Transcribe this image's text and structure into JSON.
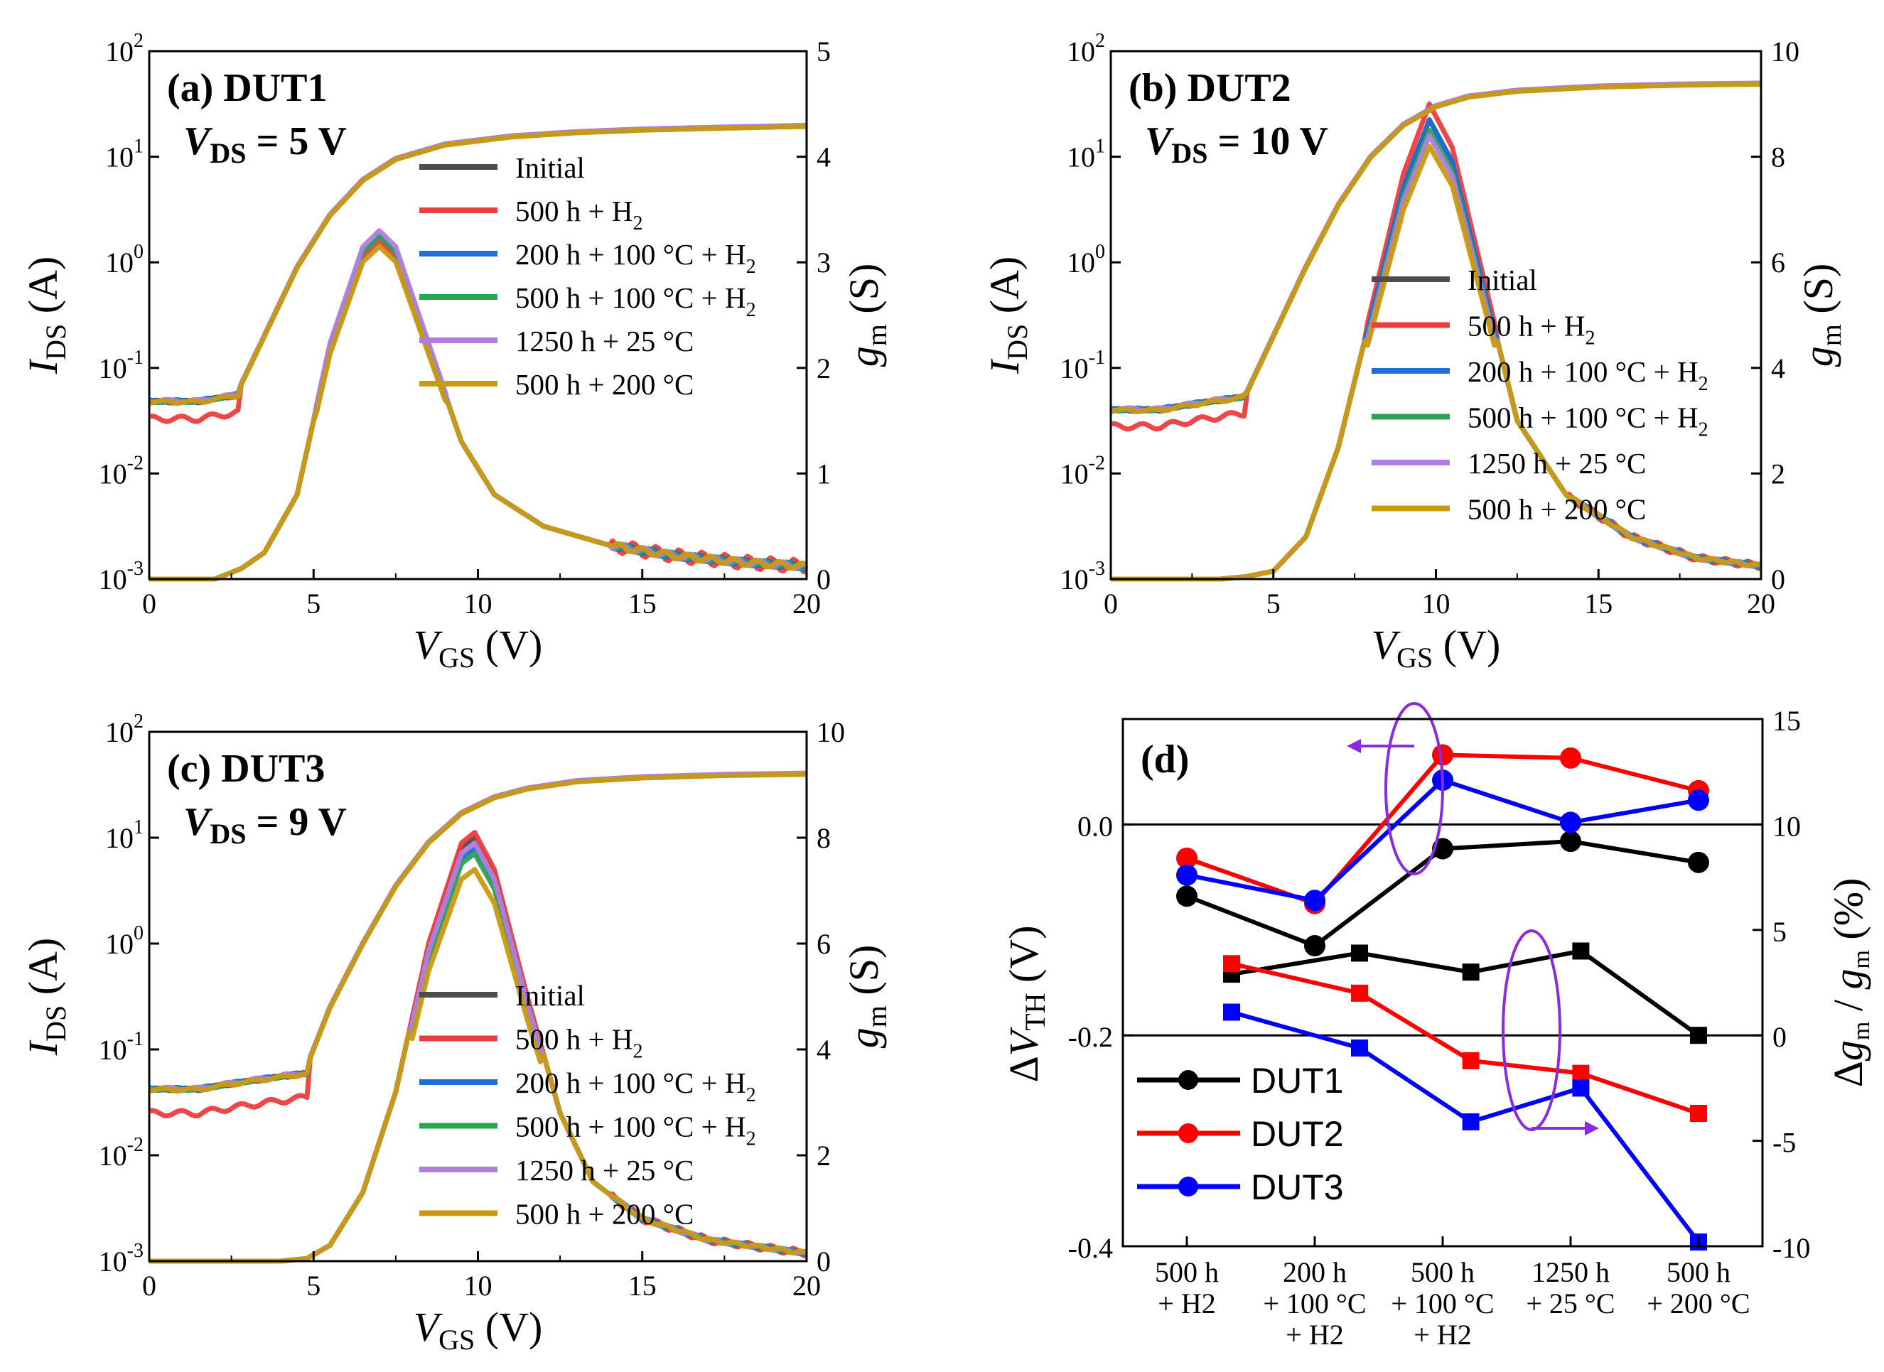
{
  "legend_labels": [
    "Initial",
    "500 h + H",
    "200 h + 100 °C + H",
    "500 h + 100 °C + H",
    "1250 h + 25 °C",
    "500 h + 200 °C"
  ],
  "legend_sub": "2",
  "series_colors": [
    "#4d4d4d",
    "#ee3d3d",
    "#1f6fd6",
    "#2ca352",
    "#b07ee0",
    "#c89a10"
  ],
  "axis_text": {
    "ids_main": "I",
    "ids_sub": "DS",
    "ids_unit": " (A)",
    "gm_main": "g",
    "gm_sub": "m",
    "gm_unit": " (S)",
    "vgs_main": "V",
    "vgs_sub": "GS",
    "vgs_unit": " (V)",
    "dvth_pre": "Δ",
    "dvth_main": "V",
    "dvth_sub": "TH",
    "dvth_unit": " (V)",
    "dgm_pre": "Δ",
    "dgm_main": "g",
    "dgm_sub": "m",
    "dgm_mid": " / ",
    "dgm_main2": "g",
    "dgm_sub2": "m",
    "dgm_unit": " (%)"
  },
  "ids_ticks": {
    "base": "10",
    "exps": [
      "-3",
      "-2",
      "-1",
      "0",
      "1",
      "2"
    ],
    "values": [
      0.001,
      0.01,
      0.1,
      1,
      10,
      100
    ]
  },
  "vgs_ticks": [
    "0",
    "5",
    "10",
    "15",
    "20"
  ],
  "panels": [
    {
      "title": "(a) DUT1",
      "vds_main": "V",
      "vds_sub": "DS",
      "vds_val": " = 5 V",
      "chart_data": {
        "type": "line",
        "title": "(a) DUT1",
        "xlabel": "VGS (V)",
        "ylabel": "IDS (A)",
        "y2label": "gm (S)",
        "xlim": [
          0,
          20
        ],
        "ylim": [
          0.001,
          100
        ],
        "y2lim": [
          0,
          5
        ],
        "y2_ticks": [
          "0",
          "1",
          "2",
          "3",
          "4",
          "5"
        ],
        "ids_initial": {
          "x": [
            0,
            2,
            2.8,
            3.5,
            4.5,
            5.5,
            6.5,
            7.5,
            9,
            11,
            13,
            15,
            17.5,
            20
          ],
          "y": [
            0.048,
            0.05,
            0.07,
            0.2,
            0.9,
            2.8,
            6,
            9.5,
            13,
            15.5,
            17,
            18,
            18.8,
            19.5
          ]
        },
        "ids_floor_variants": [
          0.033,
          0.048,
          0.048,
          0.048,
          0.048
        ],
        "gm_initial": {
          "x": [
            2.8,
            3.5,
            4.5,
            5.5,
            6.5,
            7,
            7.5,
            8.5,
            9.5,
            10.5,
            12,
            14,
            16,
            18,
            20
          ],
          "y": [
            0.1,
            0.25,
            0.8,
            2.2,
            3.1,
            3.25,
            3.1,
            2.2,
            1.3,
            0.8,
            0.5,
            0.32,
            0.22,
            0.16,
            0.12
          ]
        },
        "gm_peaks": [
          3.25,
          3.2,
          3.25,
          3.25,
          3.3,
          3.15
        ]
      }
    },
    {
      "title": "(b) DUT2",
      "vds_main": "V",
      "vds_sub": "DS",
      "vds_val": " = 10 V",
      "chart_data": {
        "type": "line",
        "title": "(b) DUT2",
        "xlabel": "VGS (V)",
        "ylabel": "IDS (A)",
        "y2label": "gm (S)",
        "xlim": [
          0,
          20
        ],
        "ylim": [
          0.001,
          100
        ],
        "y2lim": [
          0,
          10
        ],
        "y2_ticks": [
          "0",
          "2",
          "4",
          "6",
          "8",
          "10"
        ],
        "ids_initial": {
          "x": [
            0,
            3,
            4.2,
            5,
            6,
            7,
            8,
            9,
            10,
            11,
            12.5,
            15,
            17.5,
            20
          ],
          "y": [
            0.04,
            0.042,
            0.06,
            0.2,
            0.9,
            3.5,
            10,
            20,
            30,
            37,
            42,
            46,
            48,
            49
          ]
        },
        "ids_floor_variants": [
          0.028,
          0.04,
          0.04,
          0.04,
          0.04
        ],
        "gm_initial": {
          "x": [
            4.2,
            5,
            6,
            7,
            8,
            9,
            9.8,
            10.5,
            11.5,
            12.5,
            14,
            16,
            18,
            20
          ],
          "y": [
            0.05,
            0.15,
            0.8,
            2.5,
            5,
            7.5,
            8.8,
            8,
            5.5,
            3,
            1.6,
            0.8,
            0.4,
            0.25
          ]
        },
        "gm_peaks": [
          8.7,
          9.0,
          8.7,
          8.5,
          8.4,
          8.2
        ]
      }
    },
    {
      "title": "(c) DUT3",
      "vds_main": "V",
      "vds_sub": "DS",
      "vds_val": " = 9 V",
      "chart_data": {
        "type": "line",
        "title": "(c) DUT3",
        "xlabel": "VGS (V)",
        "ylabel": "IDS (A)",
        "y2label": "gm (S)",
        "xlim": [
          0,
          20
        ],
        "ylim": [
          0.001,
          100
        ],
        "y2lim": [
          0,
          10
        ],
        "y2_ticks": [
          "0",
          "2",
          "4",
          "6",
          "8",
          "10"
        ],
        "ids_initial": {
          "x": [
            0,
            4,
            4.8,
            5.5,
            6.5,
            7.5,
            8.5,
            9.5,
            10.5,
            11.5,
            13,
            15,
            17.5,
            20
          ],
          "y": [
            0.042,
            0.045,
            0.07,
            0.25,
            1.0,
            3.5,
            9,
            17,
            24,
            29,
            34,
            37,
            39,
            40
          ]
        },
        "ids_floor_variants": [
          0.025,
          0.042,
          0.042,
          0.042,
          0.042
        ],
        "gm_initial": {
          "x": [
            4.8,
            5.5,
            6.5,
            7.5,
            8.5,
            9.5,
            9.9,
            10.5,
            11.5,
            12.5,
            13.5,
            15,
            17,
            20
          ],
          "y": [
            0.05,
            0.3,
            1.3,
            3.2,
            6,
            7.9,
            8.1,
            7.4,
            5,
            2.8,
            1.5,
            0.8,
            0.4,
            0.15
          ]
        },
        "gm_peaks": [
          8.0,
          8.1,
          7.8,
          7.7,
          7.9,
          7.4
        ]
      }
    }
  ],
  "panel_d": {
    "title": "(d)",
    "legend": [
      "DUT1",
      "DUT2",
      "DUT3"
    ],
    "chart_data": {
      "type": "line",
      "categories": [
        [
          "500 h",
          "+ H2"
        ],
        [
          "200 h",
          "+ 100 °C",
          "+ H2"
        ],
        [
          "500 h",
          "+ 100 °C",
          "+ H2"
        ],
        [
          "1250 h",
          "+ 25 °C"
        ],
        [
          "500 h",
          "+ 200 °C"
        ]
      ],
      "ylabel": "ΔVTH (V)",
      "y2label": "Δgm / gm (%)",
      "ylim": [
        -0.4,
        0.1
      ],
      "y2lim": [
        -10,
        15
      ],
      "y_ticks": [
        "0.0",
        "-0.2",
        "-0.4"
      ],
      "y_tick_values": [
        0,
        -0.2,
        -0.4
      ],
      "y2_ticks": [
        "-10",
        "-5",
        "0",
        "5",
        "10",
        "15"
      ],
      "y2_tick_values": [
        -10,
        -5,
        0,
        5,
        10,
        15
      ],
      "dvth_series": [
        {
          "name": "DUT1",
          "color": "#000000",
          "values": [
            -0.068,
            -0.115,
            -0.023,
            -0.016,
            -0.036
          ]
        },
        {
          "name": "DUT2",
          "color": "#ff0000",
          "values": [
            -0.032,
            -0.075,
            0.066,
            0.063,
            0.032
          ]
        },
        {
          "name": "DUT3",
          "color": "#0000ff",
          "values": [
            -0.048,
            -0.072,
            0.042,
            0.002,
            0.023
          ]
        }
      ],
      "dgm_x_positions": [
        0.35,
        1.35,
        2.22,
        3.08,
        4.0
      ],
      "dgm_series": [
        {
          "name": "DUT1",
          "color": "#000000",
          "values": [
            2.9,
            3.9,
            3.0,
            4.0,
            0
          ]
        },
        {
          "name": "DUT2",
          "color": "#ff0000",
          "values": [
            3.4,
            2.0,
            -1.2,
            -1.8,
            -3.7
          ]
        },
        {
          "name": "DUT3",
          "color": "#0000ff",
          "values": [
            1.1,
            -0.6,
            -4.1,
            -2.5,
            -9.8
          ]
        }
      ],
      "annotation_colors": {
        "arrow": "#8a2be2"
      }
    }
  }
}
